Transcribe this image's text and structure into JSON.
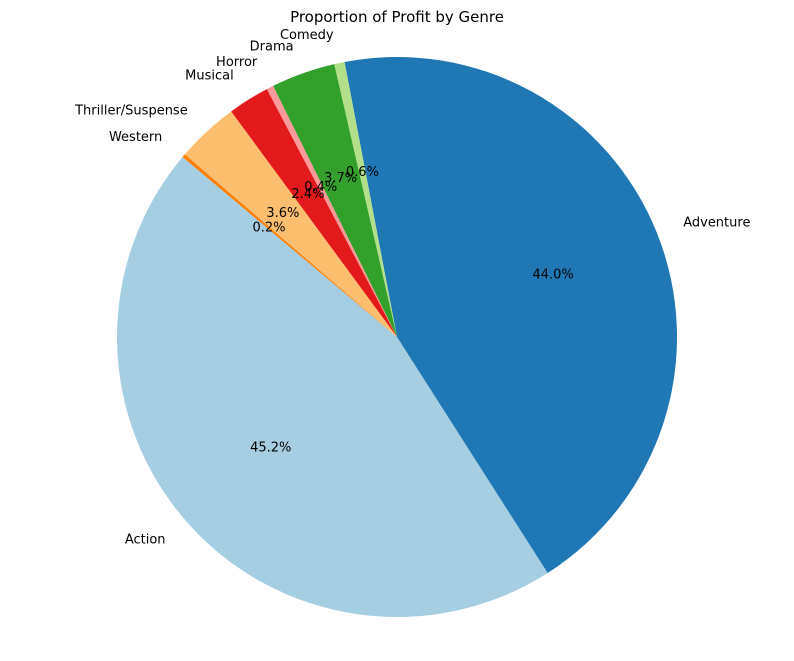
{
  "chart_data": {
    "type": "pie",
    "title": "Proportion of Profit by Genre",
    "start_angle_deg": 140,
    "direction": "counterclockwise",
    "slices": [
      {
        "label": "Action",
        "value": 45.2,
        "pct_label": "45.2%",
        "color": "#a6cee3"
      },
      {
        "label": "Adventure",
        "value": 44.0,
        "pct_label": "44.0%",
        "color": "#1f78b4"
      },
      {
        "label": "Comedy",
        "value": 0.6,
        "pct_label": "0.6%",
        "color": "#b2df8a"
      },
      {
        "label": "Drama",
        "value": 3.7,
        "pct_label": "3.7%",
        "color": "#33a02c"
      },
      {
        "label": "Horror",
        "value": 0.4,
        "pct_label": "0.4%",
        "color": "#fb9a99"
      },
      {
        "label": "Musical",
        "value": 2.4,
        "pct_label": "2.4%",
        "color": "#e31a1c"
      },
      {
        "label": "Thriller/Suspense",
        "value": 3.6,
        "pct_label": "3.6%",
        "color": "#fdbf6f"
      },
      {
        "label": "Western",
        "value": 0.2,
        "pct_label": "0.2%",
        "color": "#ff7f00"
      }
    ]
  }
}
